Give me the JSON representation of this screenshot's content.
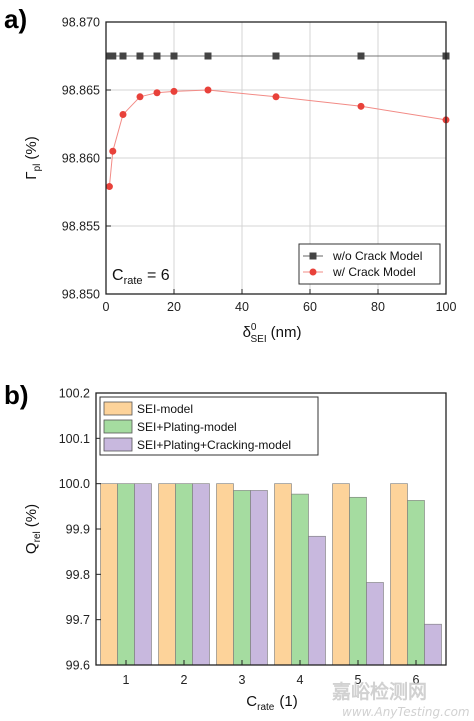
{
  "chart_data": [
    {
      "type": "scatter",
      "panel_label": "a)",
      "x_title": {
        "main": "δ",
        "sup": "0",
        "sub": "SEI",
        "unit": "(nm)"
      },
      "y_title": {
        "main": "Γ",
        "sub": "pl",
        "unit": "(%)"
      },
      "xlim": [
        0,
        100
      ],
      "ylim": [
        98.85,
        98.87
      ],
      "x_ticks": [
        0,
        20,
        40,
        60,
        80,
        100
      ],
      "y_ticks": [
        "98.850",
        "98.855",
        "98.860",
        "98.865",
        "98.870"
      ],
      "grid": true,
      "legend_position": "bottom-right",
      "annotation": {
        "main": "C",
        "sub": "rate",
        "suffix": " = 6"
      },
      "series": [
        {
          "name": "w/o Crack Model",
          "color": "#444444",
          "marker": "square",
          "x": [
            1,
            2,
            5,
            10,
            15,
            20,
            30,
            50,
            75,
            100
          ],
          "y": [
            98.8675,
            98.8675,
            98.8675,
            98.8675,
            98.8675,
            98.8675,
            98.8675,
            98.8675,
            98.8675,
            98.8675
          ]
        },
        {
          "name": "w/ Crack Model",
          "color": "#e8413a",
          "marker": "circle",
          "x": [
            1,
            2,
            5,
            10,
            15,
            20,
            30,
            50,
            75,
            100
          ],
          "y": [
            98.8579,
            98.8605,
            98.8632,
            98.8645,
            98.8648,
            98.8649,
            98.865,
            98.8645,
            98.8638,
            98.8628
          ]
        }
      ]
    },
    {
      "type": "bar",
      "panel_label": "b)",
      "x_title": {
        "main": "C",
        "sub": "rate",
        "unit": "(1)"
      },
      "y_title": {
        "main": "Q",
        "sub": "rel",
        "unit": "(%)"
      },
      "categories": [
        "1",
        "2",
        "3",
        "4",
        "5",
        "6"
      ],
      "ylim": [
        99.6,
        100.2
      ],
      "y_ticks": [
        "99.6",
        "99.7",
        "99.8",
        "99.9",
        "100.0",
        "100.1",
        "100.2"
      ],
      "legend_position": "top-left",
      "series": [
        {
          "name": "SEI-model",
          "color": "#fdd39a",
          "values": [
            100.0,
            100.0,
            100.0,
            100.0,
            100.0,
            100.0
          ]
        },
        {
          "name": "SEI+Plating-model",
          "color": "#a5dca0",
          "values": [
            100.0,
            100.0,
            99.985,
            99.977,
            99.97,
            99.963
          ]
        },
        {
          "name": "SEI+Plating+Cracking-model",
          "color": "#c8b8de",
          "values": [
            100.0,
            100.0,
            99.985,
            99.884,
            99.782,
            99.69
          ]
        }
      ]
    }
  ],
  "watermark": {
    "cn": "嘉峪检测网",
    "en": "www.AnyTesting.com"
  }
}
